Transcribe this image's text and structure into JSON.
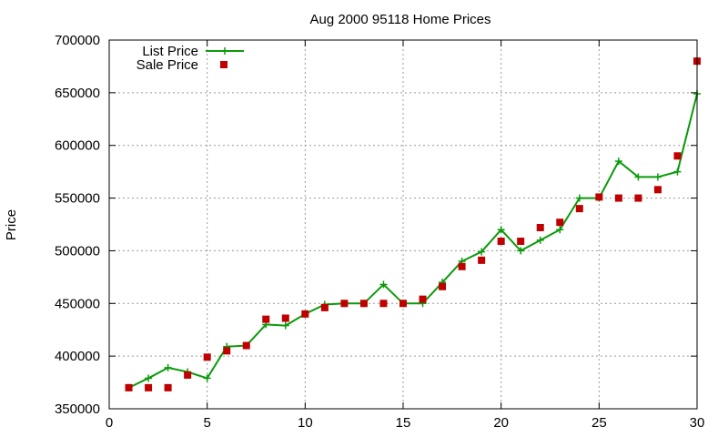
{
  "chart_data": {
    "type": "line",
    "title": "Aug 2000 95118 Home Prices",
    "xlabel": "",
    "ylabel": "Price",
    "xlim": [
      0,
      30
    ],
    "ylim": [
      350000,
      700000
    ],
    "x_ticks": [
      0,
      5,
      10,
      15,
      20,
      25,
      30
    ],
    "y_ticks": [
      350000,
      400000,
      450000,
      500000,
      550000,
      600000,
      650000,
      700000
    ],
    "grid": true,
    "legend_position": "top-left",
    "series": [
      {
        "name": "List Price",
        "style": "line+cross",
        "color": "#0a9a0a",
        "x": [
          1,
          2,
          3,
          4,
          5,
          6,
          7,
          8,
          9,
          10,
          11,
          12,
          13,
          14,
          15,
          16,
          17,
          18,
          19,
          20,
          21,
          22,
          23,
          24,
          25,
          26,
          27,
          28,
          29,
          30
        ],
        "y": [
          370000,
          379000,
          389000,
          385000,
          379000,
          409000,
          410000,
          430000,
          429000,
          440000,
          449000,
          450000,
          450000,
          468000,
          450000,
          450000,
          470000,
          490000,
          499000,
          520000,
          500000,
          510000,
          520000,
          550000,
          550000,
          585000,
          570000,
          570000,
          575000,
          649000
        ]
      },
      {
        "name": "Sale Price",
        "style": "square",
        "color": "#c00000",
        "x": [
          1,
          2,
          3,
          4,
          5,
          6,
          7,
          8,
          9,
          10,
          11,
          12,
          13,
          14,
          15,
          16,
          17,
          18,
          19,
          20,
          21,
          22,
          23,
          24,
          25,
          26,
          27,
          28,
          29,
          30
        ],
        "y": [
          370000,
          370000,
          370000,
          382000,
          399000,
          405000,
          410000,
          435000,
          436000,
          440000,
          446000,
          450000,
          450000,
          450000,
          450000,
          454000,
          466000,
          485000,
          491000,
          509000,
          509000,
          522000,
          527000,
          540000,
          551000,
          550000,
          550000,
          558000,
          590000,
          680000
        ]
      }
    ]
  }
}
